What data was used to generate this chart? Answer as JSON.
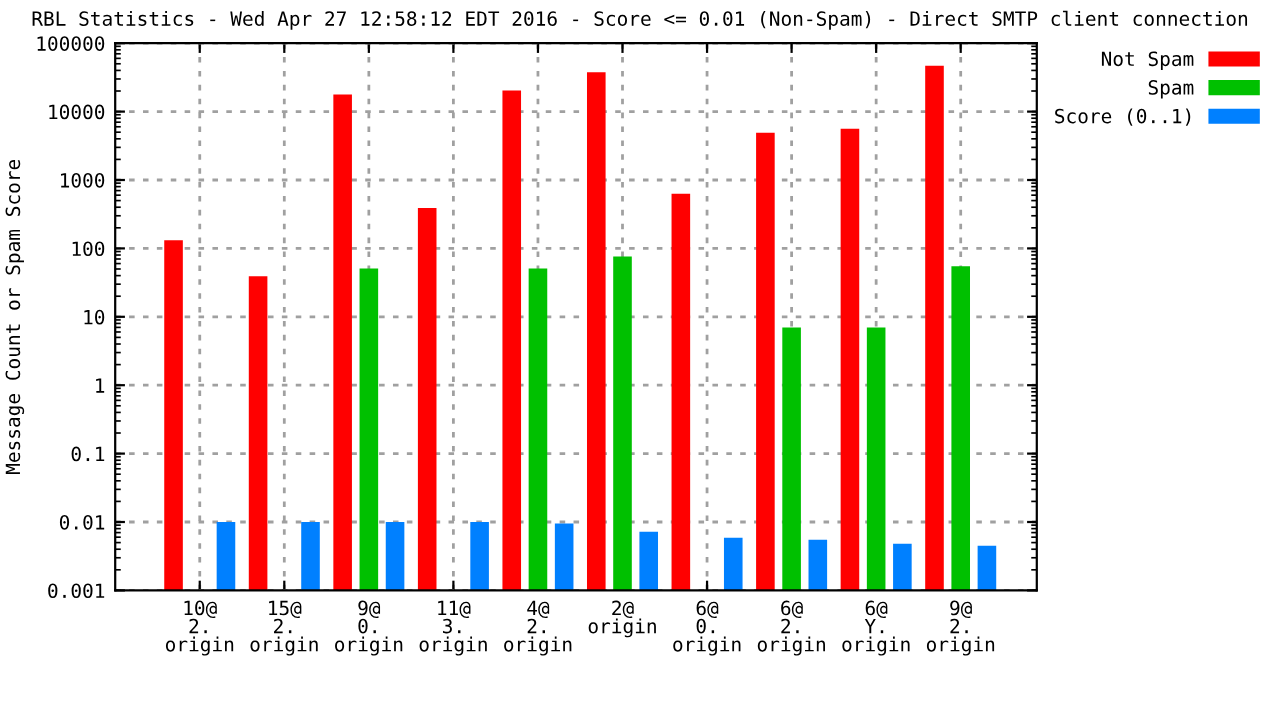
{
  "chart_data": {
    "type": "bar",
    "title": "RBL Statistics - Wed Apr 27 12:58:12 EDT 2016 - Score <= 0.01 (Non-Spam) - Direct SMTP client connection",
    "ylabel": "Message Count or Spam Score",
    "categories": [
      "10@\n2.\norigin",
      "15@\n2.\norigin",
      "9@\n0.\norigin",
      "11@\n3.\norigin",
      "4@\n2.\norigin",
      "2@\norigin",
      "6@\n0.\norigin",
      "6@\n2.\norigin",
      "6@\nY.\norigin",
      "9@\n2.\norigin"
    ],
    "series": [
      {
        "name": "Not Spam",
        "color": "#ff0000",
        "values": [
          132,
          39,
          17800,
          390,
          20400,
          37700,
          630,
          4900,
          5600,
          47000
        ]
      },
      {
        "name": "Spam",
        "color": "#00c000",
        "values": [
          null,
          null,
          51,
          null,
          51,
          76,
          null,
          7,
          7,
          55
        ]
      },
      {
        "name": "Score (0..1)",
        "color": "#0080ff",
        "values": [
          0.01,
          0.01,
          0.01,
          0.01,
          0.0095,
          0.0072,
          0.0059,
          0.0055,
          0.0048,
          0.0045
        ]
      }
    ],
    "log": "y",
    "ylim": [
      0.001,
      100000
    ],
    "yticks": [
      0.001,
      0.01,
      0.1,
      1,
      10,
      100,
      1000,
      10000,
      100000
    ],
    "grid": true,
    "legend": "top right"
  }
}
